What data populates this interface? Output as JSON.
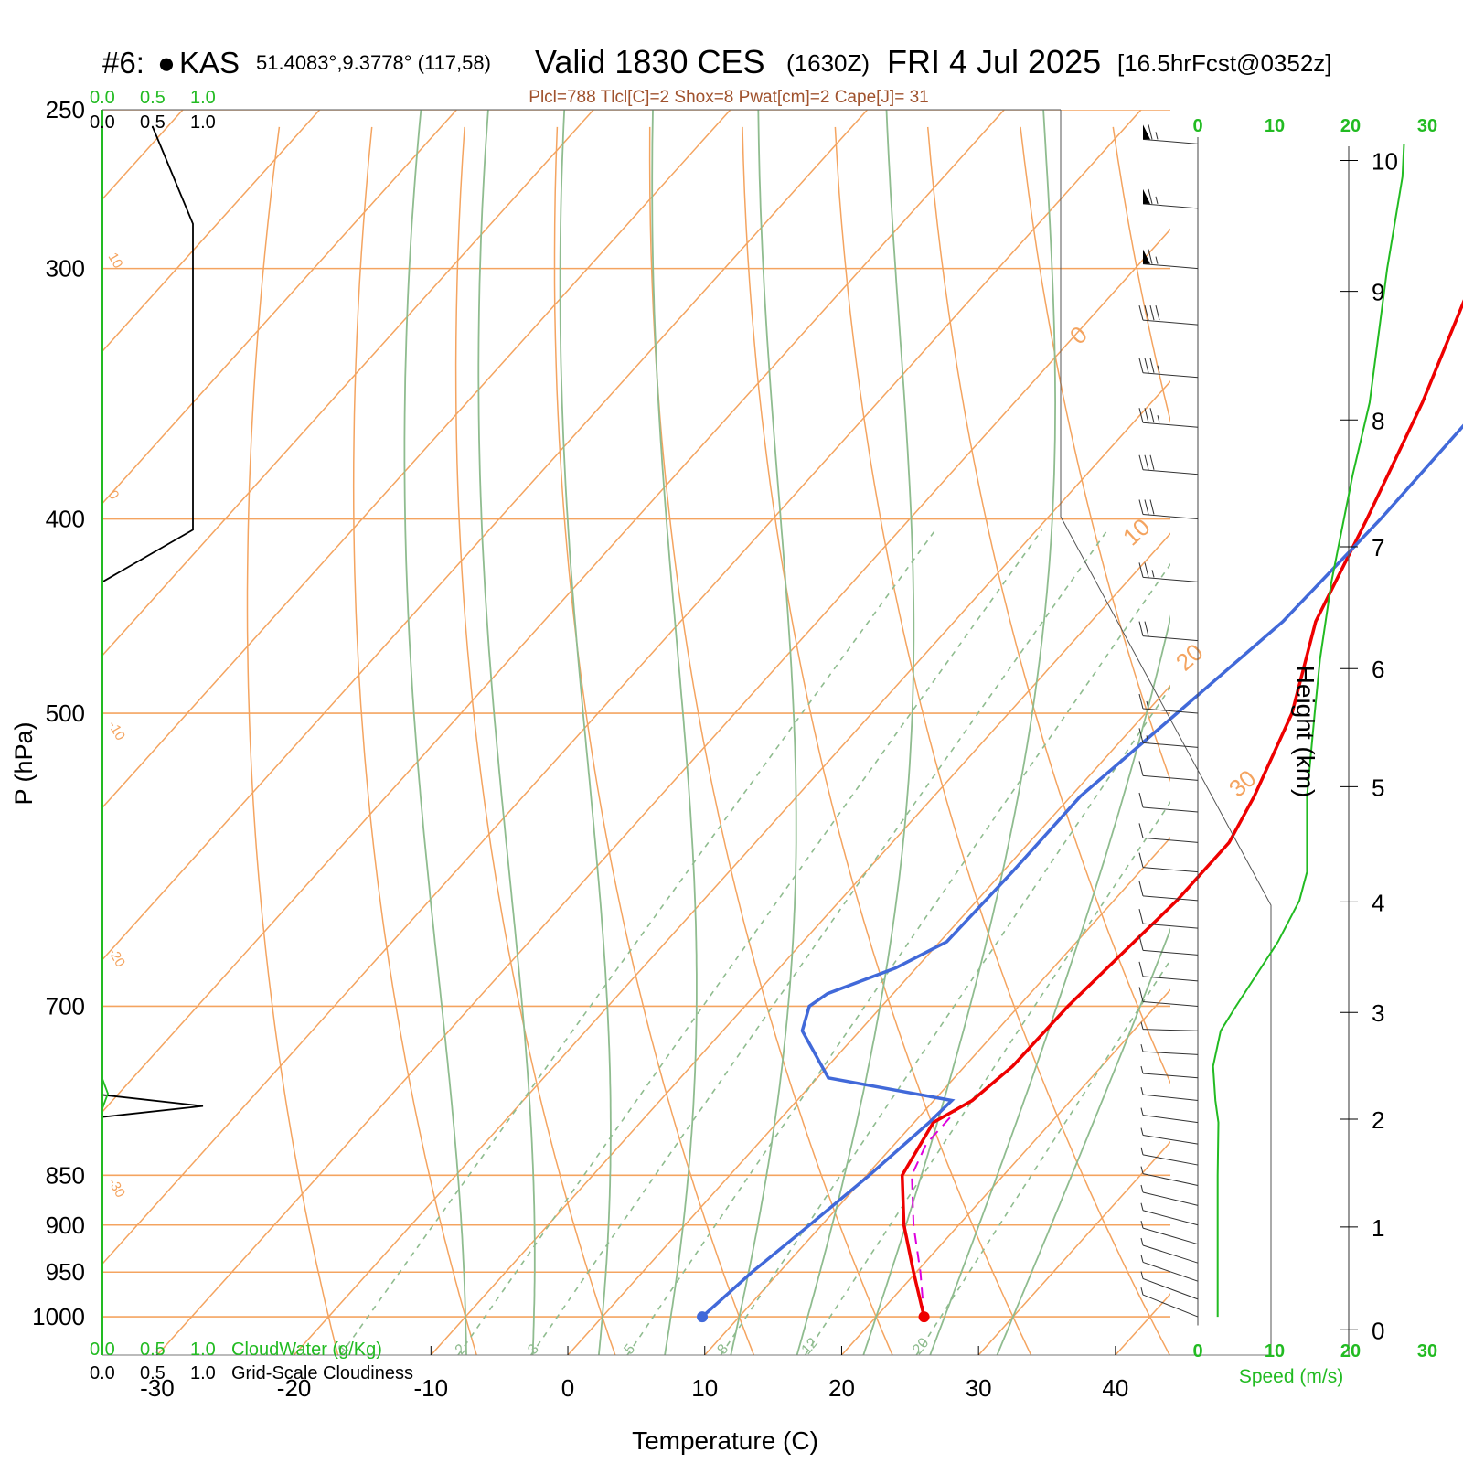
{
  "header": {
    "station_num": "#6:",
    "station_marker": "●",
    "station_id": "KAS",
    "station_coords": "51.4083°,9.3778° (117,58)",
    "valid_main": "Valid 1830 CES",
    "valid_z": "(1630Z)",
    "valid_date": "FRI 4 Jul 2025",
    "forecast": "[16.5hrFcst@0352z]",
    "indices": "Plcl=788 Tlcl[C]=2 Shox=8 Pwat[cm]=2 Cape[J]= 31"
  },
  "axes": {
    "ylabel": "P (hPa)",
    "xlabel": "Temperature (C)",
    "height_label": "Height (km)",
    "speed_label": "Speed (m/s)",
    "cloudwater_label": "CloudWater (g/Kg)",
    "cloudiness_label": "Grid-Scale Cloudiness",
    "cloud_ticks": [
      "0.0",
      "0.5",
      "1.0"
    ],
    "speed_ticks": [
      "0",
      "10",
      "20",
      "30"
    ]
  },
  "chart_data": {
    "type": "line",
    "diagram": "skew-T log-P",
    "pressure_range_hPa": [
      1045,
      250
    ],
    "temperature_range_C": [
      -34,
      36
    ],
    "pressure_ticks": [
      250,
      300,
      400,
      500,
      700,
      850,
      900,
      950,
      1000
    ],
    "temperature_ticks": [
      -30,
      -20,
      -10,
      0,
      10,
      20,
      30,
      40
    ],
    "height_ticks_km": [
      0,
      1,
      2,
      3,
      4,
      5,
      6,
      7,
      8,
      9,
      10
    ],
    "height_pressure_map": [
      [
        0,
        1015
      ],
      [
        1,
        902
      ],
      [
        2,
        797
      ],
      [
        3,
        705
      ],
      [
        4,
        621
      ],
      [
        5,
        544
      ],
      [
        6,
        475
      ],
      [
        7,
        413
      ],
      [
        8,
        357
      ],
      [
        9,
        308
      ],
      [
        10,
        265
      ]
    ],
    "isotherm_labels": [
      "-30",
      "-20",
      "-10",
      "0",
      "10",
      "20",
      "30"
    ],
    "dry_adiabat_thetas": [
      -20,
      -10,
      0,
      10,
      20,
      30,
      40,
      50,
      60,
      70,
      80,
      90,
      100,
      110,
      120
    ],
    "moist_adiabat_thetaw": [
      -10,
      -5,
      0,
      5,
      10,
      15,
      20,
      25,
      30
    ],
    "mixing_ratio_lines": [
      1,
      2,
      3,
      5,
      8,
      12,
      20
    ],
    "mixing_ratio_labels": [
      "1",
      "2",
      "3",
      "5",
      "8",
      "12",
      "20"
    ],
    "colors": {
      "temperature": "#ee0000",
      "dewpoint": "#4169d9",
      "parcel": "#dd00dd",
      "isobar": "#f4a460",
      "adiabat": "#8fbc8f",
      "mixing_ratio": "#8fbc8f",
      "wind_profile": "#22bb22",
      "cloudiness": "#000000"
    },
    "series": [
      {
        "name": "Temperature",
        "points": [
          [
            1000,
            23.5
          ],
          [
            950,
            19.8
          ],
          [
            900,
            16
          ],
          [
            850,
            12.6
          ],
          [
            800,
            11.4
          ],
          [
            780,
            12.8
          ],
          [
            750,
            13.5
          ],
          [
            700,
            13.6
          ],
          [
            650,
            14.2
          ],
          [
            620,
            14.6
          ],
          [
            580,
            14.6
          ],
          [
            550,
            13.4
          ],
          [
            500,
            10.7
          ],
          [
            450,
            6.4
          ],
          [
            400,
            3.4
          ],
          [
            350,
            -0.2
          ],
          [
            300,
            -5
          ],
          [
            260,
            -9.3
          ]
        ]
      },
      {
        "name": "Dewpoint",
        "points": [
          [
            1000,
            7.3
          ],
          [
            950,
            8
          ],
          [
            900,
            9.1
          ],
          [
            850,
            10.2
          ],
          [
            800,
            11.1
          ],
          [
            780,
            11.3
          ],
          [
            760,
            0.8
          ],
          [
            720,
            -4.2
          ],
          [
            700,
            -5.3
          ],
          [
            690,
            -4.8
          ],
          [
            670,
            -1.5
          ],
          [
            650,
            0.5
          ],
          [
            600,
            0.7
          ],
          [
            550,
            0.7
          ],
          [
            500,
            2.3
          ],
          [
            450,
            4
          ],
          [
            400,
            4.4
          ],
          [
            350,
            4.3
          ],
          [
            330,
            3.6
          ],
          [
            300,
            0.9
          ],
          [
            270,
            -3.4
          ],
          [
            260,
            -6.1
          ]
        ]
      },
      {
        "name": "Parcel",
        "points": [
          [
            1000,
            23.5
          ],
          [
            950,
            20.3
          ],
          [
            900,
            16.7
          ],
          [
            850,
            13.3
          ],
          [
            820,
            12.3
          ],
          [
            790,
            12.3
          ]
        ]
      }
    ],
    "cloudiness_profile": [
      [
        1045,
        0
      ],
      [
        795,
        0
      ],
      [
        785,
        1.0
      ],
      [
        775,
        0
      ],
      [
        430,
        0
      ],
      [
        405,
        0.9
      ],
      [
        300,
        0.9
      ],
      [
        285,
        0.9
      ],
      [
        255,
        0.5
      ]
    ],
    "wind_speed_profile": [
      [
        1000,
        2.6
      ],
      [
        950,
        2.6
      ],
      [
        900,
        2.6
      ],
      [
        850,
        2.6
      ],
      [
        800,
        2.7
      ],
      [
        780,
        2.3
      ],
      [
        750,
        2
      ],
      [
        720,
        3
      ],
      [
        700,
        5
      ],
      [
        650,
        10.5
      ],
      [
        620,
        13.3
      ],
      [
        600,
        14.3
      ],
      [
        550,
        14.3
      ],
      [
        500,
        15.3
      ],
      [
        470,
        16
      ],
      [
        430,
        17.5
      ],
      [
        380,
        20.3
      ],
      [
        350,
        22.5
      ],
      [
        300,
        24.8
      ],
      [
        270,
        26.8
      ],
      [
        260,
        27
      ]
    ],
    "wind_barbs_pressure": [
      260,
      280,
      300,
      320,
      340,
      360,
      380,
      400,
      430,
      460,
      500,
      520,
      540,
      560,
      580,
      600,
      620,
      640,
      660,
      680,
      700,
      720,
      740,
      760,
      780,
      800,
      820,
      840,
      860,
      880,
      900,
      920,
      940,
      960,
      980,
      1000
    ],
    "wind_barbs_speed_ms": [
      33,
      33,
      33,
      20,
      18,
      17,
      15,
      15,
      12,
      11,
      8,
      7,
      6,
      6,
      6,
      6,
      6,
      5,
      5,
      5,
      4,
      3,
      3,
      3,
      2,
      2,
      2,
      2,
      2,
      2,
      2,
      2,
      2,
      2,
      2,
      2
    ]
  }
}
